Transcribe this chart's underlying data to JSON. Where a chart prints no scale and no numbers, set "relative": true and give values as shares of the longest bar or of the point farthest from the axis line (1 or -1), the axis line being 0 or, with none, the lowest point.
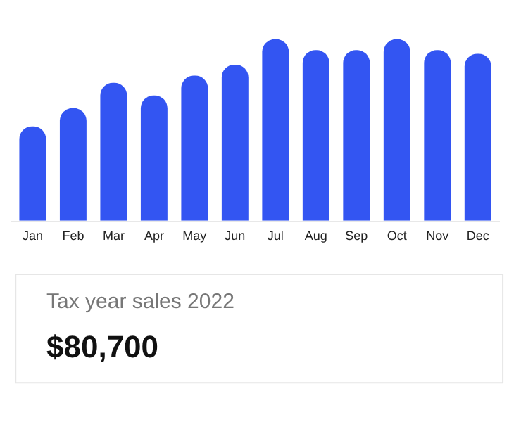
{
  "chart_data": {
    "type": "bar",
    "relative": true,
    "categories": [
      "Jan",
      "Feb",
      "Mar",
      "Apr",
      "May",
      "Jun",
      "Jul",
      "Aug",
      "Sep",
      "Oct",
      "Nov",
      "Dec"
    ],
    "values": [
      0.52,
      0.62,
      0.76,
      0.69,
      0.8,
      0.86,
      1,
      0.94,
      0.94,
      1,
      0.94,
      0.92
    ],
    "color": "#3355f2",
    "legend": false,
    "annotations": [
      "Tax year sales 2022",
      "$80,700"
    ]
  }
}
